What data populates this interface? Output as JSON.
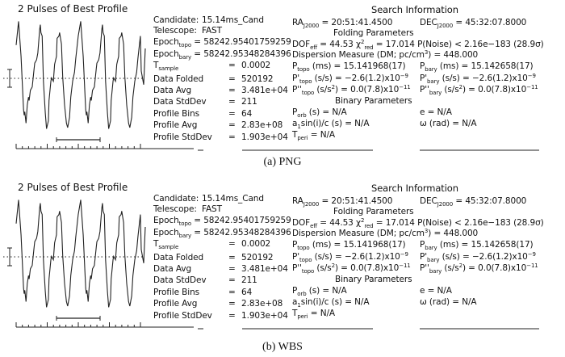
{
  "panels": [
    {
      "caption": "(a) PNG"
    },
    {
      "caption": "(b) WBS"
    }
  ],
  "info": {
    "profile_title": "2 Pulses of Best Profile",
    "left_rows": [
      [
        {
          "t": "Candidate:"
        },
        {
          "t": "15.14ms_Cand"
        }
      ],
      [
        {
          "t": "Telescope:"
        },
        {
          "t": "FAST"
        }
      ],
      [
        {
          "t": "Epoch"
        },
        {
          "sub": "topo"
        },
        {
          "t": " = 58242.95401759259"
        }
      ],
      [
        {
          "t": "Epoch"
        },
        {
          "sub": "bary"
        },
        {
          "t": " = 58242.95348284396"
        }
      ],
      [
        {
          "t": "T"
        },
        {
          "sub": "sample"
        },
        {
          "t": "="
        },
        {
          "t": "0.0002"
        }
      ],
      [
        {
          "t": "Data Folded"
        },
        {
          "t": "="
        },
        {
          "t": "520192"
        }
      ],
      [
        {
          "t": "Data Avg"
        },
        {
          "t": "="
        },
        {
          "t": "3.481e+04"
        }
      ],
      [
        {
          "t": "Data StdDev"
        },
        {
          "t": "="
        },
        {
          "t": "211"
        }
      ],
      [
        {
          "t": "Profile Bins"
        },
        {
          "t": "="
        },
        {
          "t": "64"
        }
      ],
      [
        {
          "t": "Profile Avg"
        },
        {
          "t": "="
        },
        {
          "t": "2.83e+08"
        }
      ],
      [
        {
          "t": "Profile StdDev"
        },
        {
          "t": "="
        },
        {
          "t": "1.903e+04"
        }
      ]
    ],
    "search_title": "Search Information",
    "folding_title": "Folding Parameters",
    "binary_title": "Binary Parameters",
    "right_rows": [
      {
        "a": [
          {
            "t": "RA"
          },
          {
            "sub": "J2000"
          },
          {
            "t": " = 20:51:41.4500"
          }
        ],
        "b": [
          {
            "t": "DEC"
          },
          {
            "sub": "J2000"
          },
          {
            "t": " = 45:32:07.8000"
          }
        ]
      },
      {
        "a": [
          {
            "t": "DOF"
          },
          {
            "sub": "eff"
          },
          {
            "t": " = 44.53  χ"
          },
          {
            "sup": "2"
          },
          {
            "sub": "red"
          },
          {
            "t": " = 17.014  P(Noise) < 2.16e−183   (28.9σ)"
          }
        ]
      },
      {
        "a": [
          {
            "t": "Dispersion Measure (DM; pc/cm"
          },
          {
            "sup": "3"
          },
          {
            "t": ") = 448.000"
          }
        ]
      },
      {
        "a": [
          {
            "t": "P"
          },
          {
            "sub": "topo"
          },
          {
            "t": " (ms) =  15.141968(17)"
          }
        ],
        "b": [
          {
            "t": "P"
          },
          {
            "sub": "bary"
          },
          {
            "t": " (ms) =  15.142658(17)"
          }
        ]
      },
      {
        "a": [
          {
            "t": "P'"
          },
          {
            "sub": "topo"
          },
          {
            "t": " (s/s) = −2.6(1.2)x10"
          },
          {
            "sup": "−9"
          }
        ],
        "b": [
          {
            "t": "P'"
          },
          {
            "sub": "bary"
          },
          {
            "t": " (s/s) = −2.6(1.2)x10"
          },
          {
            "sup": "−9"
          }
        ]
      },
      {
        "a": [
          {
            "t": "P''"
          },
          {
            "sub": "topo"
          },
          {
            "t": " (s/s"
          },
          {
            "sup": "2"
          },
          {
            "t": ") = 0.0(7.8)x10"
          },
          {
            "sup": "−11"
          }
        ],
        "b": [
          {
            "t": "P''"
          },
          {
            "sub": "bary"
          },
          {
            "t": " (s/s"
          },
          {
            "sup": "2"
          },
          {
            "t": ") = 0.0(7.8)x10"
          },
          {
            "sup": "−11"
          }
        ]
      },
      {
        "a": [
          {
            "t": "P"
          },
          {
            "sub": "orb"
          },
          {
            "t": " (s) = N/A"
          }
        ],
        "b": [
          {
            "t": "e = N/A"
          }
        ]
      },
      {
        "a": [
          {
            "t": "a"
          },
          {
            "sub": "1"
          },
          {
            "t": "sin(i)/c (s) = N/A"
          }
        ],
        "b": [
          {
            "t": "ω (rad) = N/A"
          }
        ]
      },
      {
        "a": [
          {
            "t": "T"
          },
          {
            "sub": "peri"
          },
          {
            "t": " = N/A"
          }
        ]
      }
    ]
  },
  "chart_data": {
    "type": "line",
    "title": "2 Pulses of Best Profile",
    "xlabel": "",
    "ylabel": "",
    "pulses": 2,
    "profile": {
      "phase": [
        0,
        0.04,
        0.08,
        0.09,
        0.1,
        0.12,
        0.14,
        0.16,
        0.17,
        0.19,
        0.22,
        0.25,
        0.26,
        0.29,
        0.31,
        0.34,
        0.35,
        0.36,
        0.38,
        0.4,
        0.43,
        0.45,
        0.48,
        0.49,
        0.52,
        0.53,
        0.56,
        0.58,
        0.61,
        0.62,
        0.65,
        0.66,
        0.69,
        0.71,
        0.74,
        0.77,
        0.79,
        0.82,
        0.84,
        0.87,
        0.9,
        0.92,
        0.96
      ],
      "intensity": [
        0.99,
        0.68,
        0.21,
        0.16,
        0.19,
        0.09,
        0.25,
        0.32,
        0.29,
        0.38,
        0.41,
        0.57,
        0.62,
        0.65,
        0.71,
        0.92,
        0.96,
        0.89,
        0.86,
        0.46,
        0.18,
        0.04,
        0.11,
        0.29,
        0.46,
        0.49,
        0.46,
        0.61,
        0.68,
        0.84,
        0.86,
        0.89,
        0.79,
        0.5,
        0.25,
        0.09,
        0.05,
        0.14,
        0.32,
        0.46,
        0.54,
        0.66,
        0.86
      ]
    },
    "mean_level": 0.5
  }
}
